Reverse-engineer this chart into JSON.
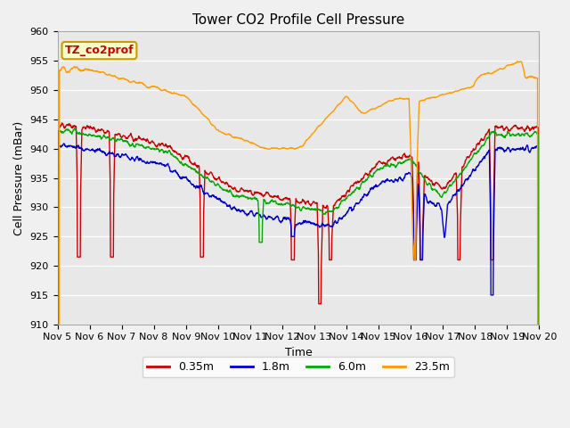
{
  "title": "Tower CO2 Profile Cell Pressure",
  "xlabel": "Time",
  "ylabel": "Cell Pressure (mBar)",
  "xlim": [
    0,
    15
  ],
  "ylim": [
    910,
    960
  ],
  "yticks": [
    910,
    915,
    920,
    925,
    930,
    935,
    940,
    945,
    950,
    955,
    960
  ],
  "xtick_labels": [
    "Nov 5",
    "Nov 6",
    "Nov 7",
    "Nov 8",
    "Nov 9",
    "Nov 10",
    "Nov 11",
    "Nov 12",
    "Nov 13",
    "Nov 14",
    "Nov 15",
    "Nov 16",
    "Nov 17",
    "Nov 18",
    "Nov 19",
    "Nov 20"
  ],
  "colors": {
    "red": "#cc0000",
    "blue": "#0000cc",
    "green": "#00aa00",
    "orange": "#ff9900"
  },
  "legend_labels": [
    "0.35m",
    "1.8m",
    "6.0m",
    "23.5m"
  ],
  "annotation_text": "TZ_co2prof",
  "annotation_color": "#cc0000",
  "annotation_bg": "#ffffcc",
  "annotation_border": "#cc9900",
  "fig_bg": "#f0f0f0",
  "plot_bg": "#e8e8e8",
  "grid_color": "#ffffff",
  "title_fontsize": 11,
  "axis_fontsize": 9,
  "tick_fontsize": 8
}
